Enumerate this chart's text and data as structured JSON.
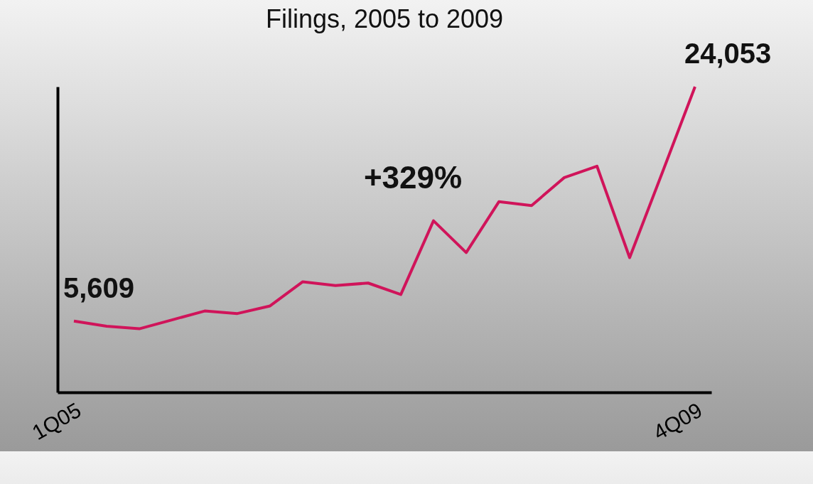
{
  "chart_data": {
    "type": "line",
    "title": "Filings, 2005 to 2009",
    "tick_labels": "x",
    "categories": [
      "1Q05",
      null,
      null,
      null,
      null,
      null,
      null,
      null,
      null,
      null,
      null,
      null,
      null,
      null,
      null,
      null,
      null,
      null,
      null,
      "4Q09"
    ],
    "series": [
      {
        "color": "#d0145a",
        "values": [
          5609,
          5200,
          5000,
          5700,
          6400,
          6200,
          6800,
          8700,
          8400,
          8600,
          7700,
          13500,
          11000,
          15000,
          14700,
          16900,
          17800,
          10600,
          17300,
          24053
        ],
        "value_labels": [
          "5,609",
          null,
          null,
          null,
          null,
          null,
          null,
          null,
          null,
          null,
          null,
          null,
          null,
          null,
          null,
          null,
          null,
          null,
          null,
          "24,053"
        ]
      }
    ],
    "annotations": [
      "+329%"
    ],
    "marker": "none",
    "grid": false,
    "legend": false
  }
}
